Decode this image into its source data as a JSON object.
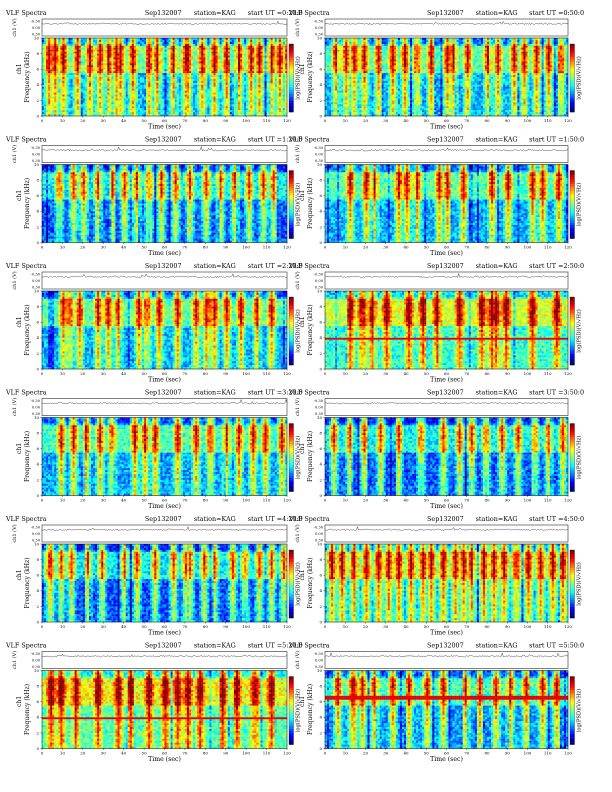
{
  "page": {
    "title_prefix": "VLF Spectra",
    "date": "Sep132007",
    "station_label": "station=KAG",
    "start_prefix": "start  UT ="
  },
  "chart_data": [
    {
      "type": "heatmap",
      "panel": "0:20:0",
      "title_start": "0:20:0",
      "xlabel": "Time (sec)",
      "ylabel": "Frequency (kHz)",
      "amp_label": "ch1 (V)",
      "colorbar_label": "log(PSD)(V/√Hz)",
      "xlim": [
        0,
        120
      ],
      "ylim": [
        0,
        10
      ],
      "amp_ylim": [
        -0.3,
        0.3
      ],
      "x_ticks": [
        0,
        10,
        20,
        30,
        40,
        50,
        60,
        70,
        80,
        90,
        100,
        110,
        120
      ],
      "y_ticks": [
        0,
        2,
        4,
        6,
        8,
        10
      ],
      "amp_ticks": [
        "-0.30",
        "0.00",
        "0.30"
      ],
      "noise_base": 0.32,
      "line_khz": null,
      "bursts": [
        3,
        6,
        10,
        17,
        23,
        28,
        32,
        36,
        38,
        44,
        52,
        56,
        64,
        70,
        71,
        78,
        84,
        90,
        96,
        102,
        106,
        112,
        116,
        120
      ]
    },
    {
      "type": "heatmap",
      "panel": "0:50:0",
      "title_start": "0:50:0",
      "xlabel": "Time (sec)",
      "ylabel": "Frequency (kHz)",
      "amp_label": "ch1 (V)",
      "colorbar_label": "log(PSD)(V/√Hz)",
      "xlim": [
        0,
        120
      ],
      "ylim": [
        0,
        10
      ],
      "amp_ylim": [
        -0.3,
        0.3
      ],
      "x_ticks": [
        0,
        10,
        20,
        30,
        40,
        50,
        60,
        70,
        80,
        90,
        100,
        110,
        120
      ],
      "y_ticks": [
        0,
        2,
        4,
        6,
        8,
        10
      ],
      "amp_ticks": [
        "-0.30",
        "0.00",
        "0.30"
      ],
      "noise_base": 0.3,
      "line_khz": null,
      "bursts": [
        5,
        10,
        14,
        19,
        26,
        33,
        39,
        45,
        52,
        60,
        63,
        70,
        80,
        85,
        93,
        98,
        104,
        110,
        116
      ]
    },
    {
      "type": "heatmap",
      "panel": "1:20:0",
      "title_start": "1:20:0",
      "xlabel": "Time (sec)",
      "ylabel": "Frequency (kHz)",
      "amp_label": "ch1 (V)",
      "colorbar_label": "log(PSD)(V/√Hz)",
      "xlim": [
        0,
        120
      ],
      "ylim": [
        0,
        10
      ],
      "amp_ylim": [
        -0.3,
        0.3
      ],
      "x_ticks": [
        0,
        10,
        20,
        30,
        40,
        50,
        60,
        70,
        80,
        90,
        100,
        110,
        120
      ],
      "y_ticks": [
        0,
        2,
        4,
        6,
        8,
        10
      ],
      "amp_ticks": [
        "-0.30",
        "0.00",
        "0.30"
      ],
      "noise_base": 0.22,
      "line_khz": null,
      "bursts": [
        8,
        15,
        20,
        27,
        34,
        40,
        46,
        52,
        58,
        65,
        72,
        80,
        87,
        94,
        101,
        108,
        113
      ]
    },
    {
      "type": "heatmap",
      "panel": "1:50:0",
      "title_start": "1:50:0",
      "xlabel": "Time (sec)",
      "ylabel": "Frequency (kHz)",
      "amp_label": "ch1 (V)",
      "colorbar_label": "log(PSD)(V/√Hz)",
      "xlim": [
        0,
        120
      ],
      "ylim": [
        0,
        10
      ],
      "amp_ylim": [
        -0.3,
        0.3
      ],
      "x_ticks": [
        0,
        10,
        20,
        30,
        40,
        50,
        60,
        70,
        80,
        90,
        100,
        110,
        120
      ],
      "y_ticks": [
        0,
        2,
        4,
        6,
        8,
        10
      ],
      "amp_ticks": [
        "-0.30",
        "0.00",
        "0.30"
      ],
      "noise_base": 0.3,
      "line_khz": null,
      "bursts": [
        12,
        20,
        24,
        36,
        40,
        45,
        56,
        60,
        68,
        82,
        90,
        102,
        107,
        115
      ]
    },
    {
      "type": "heatmap",
      "panel": "2:20:0",
      "title_start": "2:20:0",
      "xlabel": "Time (sec)",
      "ylabel": "Frequency (kHz)",
      "amp_label": "ch1 (V)",
      "colorbar_label": "log(PSD)(V/√Hz)",
      "xlim": [
        0,
        120
      ],
      "ylim": [
        0,
        10
      ],
      "amp_ylim": [
        -0.3,
        0.3
      ],
      "x_ticks": [
        0,
        10,
        20,
        30,
        40,
        50,
        60,
        70,
        80,
        90,
        100,
        110,
        120
      ],
      "y_ticks": [
        0,
        2,
        4,
        6,
        8,
        10
      ],
      "amp_ticks": [
        "-0.30",
        "0.00",
        "0.30"
      ],
      "noise_base": 0.3,
      "line_khz": null,
      "bursts": [
        10,
        13,
        18,
        27,
        32,
        37,
        47,
        51,
        57,
        66,
        75,
        80,
        81,
        84,
        90,
        97,
        105,
        112
      ]
    },
    {
      "type": "heatmap",
      "panel": "2:50:0",
      "title_start": "2:50:0",
      "xlabel": "Time (sec)",
      "ylabel": "Frequency (kHz)",
      "amp_label": "ch1 (V)",
      "colorbar_label": "log(PSD)(V/√Hz)",
      "xlim": [
        0,
        120
      ],
      "ylim": [
        0,
        10
      ],
      "amp_ylim": [
        -0.3,
        0.3
      ],
      "x_ticks": [
        0,
        10,
        20,
        30,
        40,
        50,
        60,
        70,
        80,
        90,
        100,
        110,
        120
      ],
      "y_ticks": [
        0,
        2,
        4,
        6,
        8,
        10
      ],
      "amp_ticks": [
        "-0.30",
        "0.00",
        "0.30"
      ],
      "noise_base": 0.42,
      "line_khz": 3.8,
      "bursts": [
        12,
        18,
        23,
        30,
        41,
        48,
        55,
        66,
        77,
        82,
        84,
        89,
        102,
        114
      ]
    },
    {
      "type": "heatmap",
      "panel": "3:20:0",
      "title_start": "3:20:0",
      "xlabel": "Time (sec)",
      "ylabel": "Frequency (kHz)",
      "amp_label": "ch1 (V)",
      "colorbar_label": "log(PSD)(V/√Hz)",
      "xlim": [
        0,
        120
      ],
      "ylim": [
        0,
        10
      ],
      "amp_ylim": [
        -0.3,
        0.3
      ],
      "x_ticks": [
        0,
        10,
        20,
        30,
        40,
        50,
        60,
        70,
        80,
        90,
        100,
        110,
        120
      ],
      "y_ticks": [
        0,
        2,
        4,
        6,
        8,
        10
      ],
      "amp_ticks": [
        "-0.30",
        "0.00",
        "0.30"
      ],
      "noise_base": 0.28,
      "line_khz": null,
      "bursts": [
        9,
        15,
        21,
        28,
        34,
        45,
        50,
        55,
        66,
        75,
        82,
        90,
        96,
        103,
        109,
        117
      ]
    },
    {
      "type": "heatmap",
      "panel": "3:50:0",
      "title_start": "3:50:0",
      "xlabel": "Time (sec)",
      "ylabel": "Frequency (kHz)",
      "amp_label": "ch1 (V)",
      "colorbar_label": "log(PSD)(V/√Hz)",
      "xlim": [
        0,
        120
      ],
      "ylim": [
        0,
        10
      ],
      "amp_ylim": [
        -0.3,
        0.3
      ],
      "x_ticks": [
        0,
        10,
        20,
        30,
        40,
        50,
        60,
        70,
        80,
        90,
        100,
        110,
        120
      ],
      "y_ticks": [
        0,
        2,
        4,
        6,
        8,
        10
      ],
      "amp_ticks": [
        "-0.30",
        "0.00",
        "0.30"
      ],
      "noise_base": 0.22,
      "line_khz": null,
      "bursts": [
        4,
        12,
        19,
        27,
        36,
        47,
        58,
        66,
        72,
        79,
        87,
        95,
        103,
        110,
        117
      ]
    },
    {
      "type": "heatmap",
      "panel": "4:20:0",
      "title_start": "4:20:0",
      "xlabel": "Time (sec)",
      "ylabel": "Frequency (kHz)",
      "amp_label": "ch1 (V)",
      "colorbar_label": "log(PSD)(V/√Hz)",
      "xlim": [
        0,
        120
      ],
      "ylim": [
        0,
        10
      ],
      "amp_ylim": [
        -0.3,
        0.3
      ],
      "x_ticks": [
        0,
        10,
        20,
        30,
        40,
        50,
        60,
        70,
        80,
        90,
        100,
        110,
        120
      ],
      "y_ticks": [
        0,
        2,
        4,
        6,
        8,
        10
      ],
      "amp_ticks": [
        "-0.30",
        "0.00",
        "0.30"
      ],
      "noise_base": 0.2,
      "line_khz": null,
      "bursts": [
        3,
        4,
        9,
        14,
        22,
        29,
        40,
        46,
        55,
        64,
        70,
        72,
        79,
        84,
        93,
        99,
        106,
        112,
        118
      ]
    },
    {
      "type": "heatmap",
      "panel": "4:50:0",
      "title_start": "4:50:0",
      "xlabel": "Time (sec)",
      "ylabel": "Frequency (kHz)",
      "amp_label": "ch1 (V)",
      "colorbar_label": "log(PSD)(V/√Hz)",
      "xlim": [
        0,
        120
      ],
      "ylim": [
        0,
        10
      ],
      "amp_ylim": [
        -0.3,
        0.3
      ],
      "x_ticks": [
        0,
        10,
        20,
        30,
        40,
        50,
        60,
        70,
        80,
        90,
        100,
        110,
        120
      ],
      "y_ticks": [
        0,
        2,
        4,
        6,
        8,
        10
      ],
      "amp_ticks": [
        "-0.30",
        "0.00",
        "0.30"
      ],
      "noise_base": 0.34,
      "line_khz": null,
      "bursts": [
        3,
        8,
        14,
        20,
        26,
        31,
        36,
        42,
        48,
        52,
        58,
        64,
        68,
        72,
        78,
        83,
        88,
        94,
        100,
        106,
        112,
        117
      ]
    },
    {
      "type": "heatmap",
      "panel": "5:20:0",
      "title_start": "5:20:0",
      "xlabel": "Time (sec)",
      "ylabel": "Frequency (kHz)",
      "amp_label": "ch1 (V)",
      "colorbar_label": "log(PSD)(V/√Hz)",
      "xlim": [
        0,
        120
      ],
      "ylim": [
        0,
        10
      ],
      "amp_ylim": [
        -0.3,
        0.3
      ],
      "x_ticks": [
        0,
        10,
        20,
        30,
        40,
        50,
        60,
        70,
        80,
        90,
        100,
        110,
        120
      ],
      "y_ticks": [
        0,
        2,
        4,
        6,
        8,
        10
      ],
      "amp_ticks": [
        "-0.30",
        "0.00",
        "0.30"
      ],
      "noise_base": 0.46,
      "line_khz": 3.8,
      "bursts": [
        4,
        9,
        16,
        27,
        37,
        43,
        52,
        60,
        66,
        71,
        77,
        88,
        95,
        104,
        112
      ]
    },
    {
      "type": "heatmap",
      "panel": "5:50:0",
      "title_start": "5:50:0",
      "xlabel": "Time (sec)",
      "ylabel": "Frequency (kHz)",
      "amp_label": "ch1 (V)",
      "colorbar_label": "log(PSD)(V/√Hz)",
      "xlim": [
        0,
        120
      ],
      "ylim": [
        0,
        10
      ],
      "amp_ylim": [
        -0.3,
        0.3
      ],
      "x_ticks": [
        0,
        10,
        20,
        30,
        40,
        50,
        60,
        70,
        80,
        90,
        100,
        110,
        120
      ],
      "y_ticks": [
        0,
        2,
        4,
        6,
        8,
        10
      ],
      "amp_ticks": [
        "-0.30",
        "0.00",
        "0.30"
      ],
      "noise_base": 0.28,
      "line_khz": 6.5,
      "bursts": [
        6,
        13,
        14,
        18,
        24,
        33,
        41,
        50,
        58,
        69,
        76,
        84,
        91,
        99,
        107,
        114
      ]
    }
  ]
}
